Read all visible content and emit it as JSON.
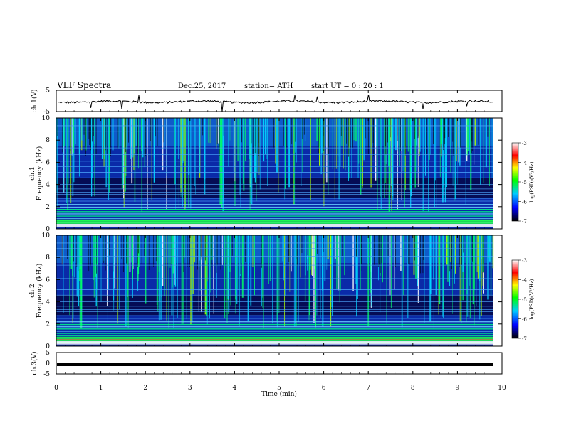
{
  "header": {
    "title": "VLF  Spectra",
    "date": "Dec.25, 2017",
    "station": "station= ATH",
    "start_ut": "start  UT  =    0  : 20 : 1"
  },
  "chart_data": {
    "type": "heatmap",
    "xlabel": "Time  (min)",
    "xlim": [
      0,
      10
    ],
    "xticks": [
      "0",
      "1",
      "2",
      "3",
      "4",
      "5",
      "6",
      "7",
      "8",
      "9",
      "10"
    ],
    "panels": [
      {
        "id": "ch1-waveform",
        "type": "line",
        "ylabel": "ch.1(V)",
        "ylim": [
          -5,
          5
        ],
        "yticks": [
          "5",
          "-5"
        ],
        "trace_end_min": 9.8
      },
      {
        "id": "ch1-spectrogram",
        "type": "heatmap",
        "ylabel_top": "ch.1",
        "ylabel": "Frequency  (kHz)",
        "ylim": [
          0,
          10
        ],
        "yticks": [
          "0",
          "2",
          "4",
          "6",
          "8",
          "10"
        ],
        "data_end_min": 9.8
      },
      {
        "id": "ch2-spectrogram",
        "type": "heatmap",
        "ylabel_top": "ch.2",
        "ylabel": "Frequency  (kHz)",
        "ylim": [
          0,
          10
        ],
        "yticks": [
          "0",
          "2",
          "4",
          "6",
          "8",
          "10"
        ],
        "data_end_min": 9.8
      },
      {
        "id": "ch3-waveform",
        "type": "line",
        "ylabel": "ch.3(V)",
        "ylim": [
          -5,
          5
        ],
        "yticks": [
          "5",
          "0",
          "-5"
        ],
        "trace_level_v": -0.5,
        "trace_end_min": 9.8
      }
    ],
    "colorbar": {
      "label": "log(PSD)(V²/Hz)",
      "range": [
        -7,
        -3
      ],
      "ticks": [
        "-3",
        "-4",
        "-5",
        "-6",
        "-7"
      ],
      "colors": [
        "#000000",
        "#0000ff",
        "#00ccff",
        "#00ff00",
        "#ffff00",
        "#ff0000",
        "#ffffff"
      ]
    }
  }
}
